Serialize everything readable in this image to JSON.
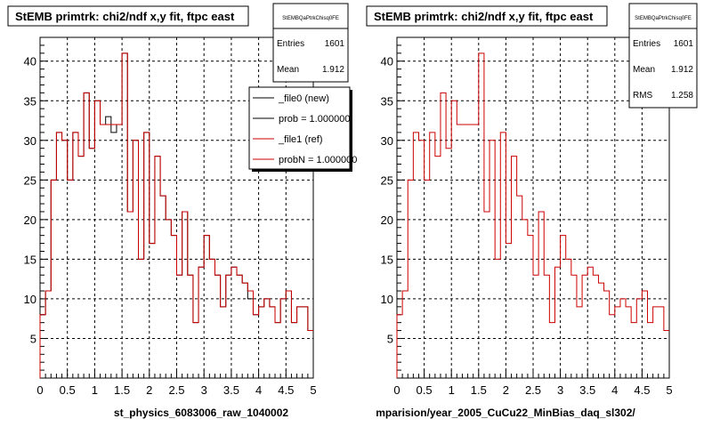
{
  "chart_data": [
    {
      "type": "step-histogram",
      "title": "StEMB primtrk: chi2/ndf x,y fit, ftpc east",
      "xlabel": "st_physics_6083006_raw_1040002",
      "xlim": [
        0,
        5
      ],
      "ylim": [
        0,
        43
      ],
      "x_ticks": [
        "0",
        "0.5",
        "1",
        "1.5",
        "2",
        "2.5",
        "3",
        "3.5",
        "4",
        "4.5",
        "5"
      ],
      "y_ticks": [
        "5",
        "10",
        "15",
        "20",
        "25",
        "30",
        "35",
        "40"
      ],
      "grid": true,
      "stats": {
        "name": "StEMBQaPtrkChisq0FE",
        "rows": [
          {
            "label": "Entries",
            "value": "1601"
          },
          {
            "label": "Mean",
            "value": "1.912"
          }
        ]
      },
      "legend": [
        {
          "label": "_file0 (new)",
          "color": "#000000"
        },
        {
          "label": "prob = 1.000000",
          "color": "#000000"
        },
        {
          "label": "_file1 (ref)",
          "color": "#cc0000"
        },
        {
          "label": "probN = 1.000000",
          "color": "#cc0000"
        }
      ],
      "bin_width": 0.1,
      "series": [
        {
          "name": "_file0 (new)",
          "color": "#000000",
          "values": [
            8,
            11,
            25,
            31,
            30,
            25,
            31,
            28,
            36,
            29,
            35,
            32,
            33,
            31,
            32,
            41,
            21,
            30,
            15,
            31,
            17,
            28,
            23,
            20,
            18,
            13,
            21,
            13,
            7,
            14,
            18,
            15,
            13,
            9,
            13,
            14,
            13,
            12,
            10,
            8,
            9,
            10,
            9,
            7,
            10,
            11,
            7,
            9,
            9,
            6
          ]
        },
        {
          "name": "_file1 (ref)",
          "color": "#cc0000",
          "values": [
            8,
            11,
            25,
            31,
            30,
            25,
            31,
            28,
            36,
            29,
            35,
            32,
            32,
            32,
            32,
            41,
            21,
            30,
            15,
            31,
            17,
            28,
            23,
            20,
            18,
            13,
            21,
            13,
            7,
            14,
            18,
            15,
            13,
            9,
            13,
            14,
            13,
            12,
            11,
            8,
            9,
            10,
            9,
            7,
            10,
            11,
            7,
            9,
            9,
            6
          ]
        }
      ]
    },
    {
      "type": "step-histogram",
      "title": "StEMB primtrk: chi2/ndf x,y fit, ftpc east",
      "xlabel": "mparision/year_2005_CuCu22_MinBias_daq_sl302/",
      "xlim": [
        0,
        5
      ],
      "ylim": [
        0,
        43
      ],
      "x_ticks": [
        "0",
        "0.5",
        "1",
        "1.5",
        "2",
        "2.5",
        "3",
        "3.5",
        "4",
        "4.5",
        "5"
      ],
      "y_ticks": [
        "5",
        "10",
        "15",
        "20",
        "25",
        "30",
        "35",
        "40"
      ],
      "grid": true,
      "stats": {
        "name": "StEMBQaPtrkChisq0FE",
        "rows": [
          {
            "label": "Entries",
            "value": "1601"
          },
          {
            "label": "Mean",
            "value": "1.912"
          },
          {
            "label": "RMS",
            "value": "1.258"
          }
        ]
      },
      "bin_width": 0.1,
      "series": [
        {
          "name": "_file1 (ref)",
          "color": "#cc0000",
          "values": [
            8,
            11,
            25,
            31,
            30,
            25,
            31,
            28,
            36,
            29,
            35,
            32,
            32,
            32,
            32,
            41,
            21,
            30,
            15,
            31,
            17,
            28,
            23,
            20,
            18,
            13,
            21,
            13,
            7,
            14,
            18,
            15,
            13,
            9,
            13,
            14,
            13,
            12,
            11,
            8,
            9,
            10,
            9,
            7,
            10,
            11,
            7,
            9,
            9,
            6
          ]
        }
      ]
    }
  ]
}
